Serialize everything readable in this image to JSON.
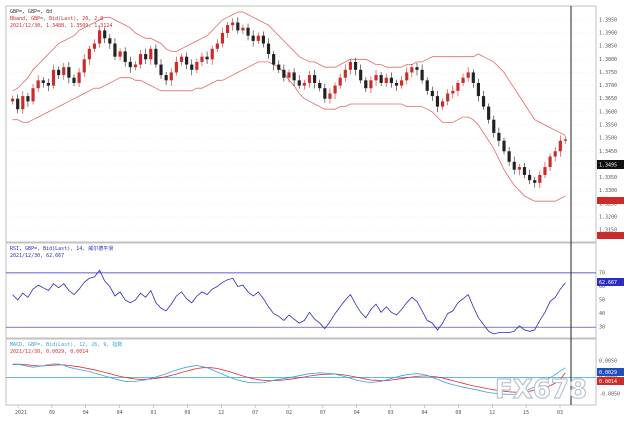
{
  "chart_data": [
    {
      "type": "candlestick",
      "panel": "price",
      "header": {
        "line1": "GBP=, GBP=, 8d",
        "line2": "Bband, GBP=, Bid(Last), 20, 2.0",
        "line3": "2021/12/30, 1.3488, 1.3509, 1.3124"
      },
      "last_price_label": "1.3495",
      "y_ticks": [
        "1.3950",
        "1.3900",
        "1.3850",
        "1.3800",
        "1.3750",
        "1.3700",
        "1.3650",
        "1.3600",
        "1.3550",
        "1.3500",
        "1.3450",
        "1.3400",
        "1.3350",
        "1.3300",
        "1.3250",
        "1.3200",
        "1.3150"
      ],
      "y_range": [
        1.312,
        1.398
      ],
      "candles_close": [
        1.365,
        1.361,
        1.366,
        1.364,
        1.369,
        1.372,
        1.371,
        1.37,
        1.376,
        1.374,
        1.377,
        1.373,
        1.371,
        1.375,
        1.38,
        1.384,
        1.386,
        1.391,
        1.388,
        1.386,
        1.381,
        1.383,
        1.379,
        1.377,
        1.378,
        1.382,
        1.38,
        1.384,
        1.378,
        1.374,
        1.372,
        1.375,
        1.379,
        1.381,
        1.378,
        1.376,
        1.379,
        1.381,
        1.38,
        1.384,
        1.386,
        1.39,
        1.393,
        1.394,
        1.391,
        1.392,
        1.389,
        1.387,
        1.389,
        1.386,
        1.382,
        1.378,
        1.376,
        1.373,
        1.375,
        1.372,
        1.37,
        1.371,
        1.374,
        1.371,
        1.369,
        1.365,
        1.367,
        1.37,
        1.373,
        1.376,
        1.379,
        1.376,
        1.372,
        1.369,
        1.372,
        1.374,
        1.371,
        1.373,
        1.371,
        1.37,
        1.372,
        1.375,
        1.377,
        1.376,
        1.372,
        1.368,
        1.366,
        1.362,
        1.364,
        1.367,
        1.368,
        1.371,
        1.373,
        1.375,
        1.371,
        1.366,
        1.362,
        1.357,
        1.352,
        1.349,
        1.345,
        1.341,
        1.338,
        1.339,
        1.336,
        1.334,
        1.333,
        1.336,
        1.339,
        1.343,
        1.345,
        1.349,
        1.3495
      ],
      "upper_band": [
        1.368,
        1.369,
        1.371,
        1.373,
        1.376,
        1.378,
        1.38,
        1.382,
        1.384,
        1.386,
        1.387,
        1.388,
        1.389,
        1.391,
        1.392,
        1.393,
        1.394,
        1.395,
        1.396,
        1.396,
        1.395,
        1.394,
        1.393,
        1.392,
        1.39,
        1.389,
        1.388,
        1.388,
        1.387,
        1.386,
        1.384,
        1.383,
        1.383,
        1.384,
        1.385,
        1.386,
        1.387,
        1.388,
        1.389,
        1.391,
        1.393,
        1.395,
        1.396,
        1.397,
        1.398,
        1.398,
        1.397,
        1.396,
        1.395,
        1.394,
        1.393,
        1.391,
        1.389,
        1.387,
        1.385,
        1.383,
        1.381,
        1.38,
        1.379,
        1.379,
        1.378,
        1.377,
        1.377,
        1.377,
        1.378,
        1.379,
        1.38,
        1.38,
        1.38,
        1.38,
        1.379,
        1.378,
        1.378,
        1.377,
        1.377,
        1.377,
        1.377,
        1.378,
        1.378,
        1.379,
        1.379,
        1.38,
        1.381,
        1.381,
        1.381,
        1.381,
        1.381,
        1.381,
        1.381,
        1.381,
        1.381,
        1.382,
        1.381,
        1.38,
        1.379,
        1.377,
        1.375,
        1.372,
        1.369,
        1.366,
        1.363,
        1.36,
        1.357,
        1.356,
        1.355,
        1.354,
        1.353,
        1.352,
        1.351
      ],
      "lower_band": [
        1.357,
        1.357,
        1.356,
        1.356,
        1.357,
        1.358,
        1.359,
        1.36,
        1.361,
        1.362,
        1.363,
        1.364,
        1.365,
        1.366,
        1.367,
        1.368,
        1.369,
        1.369,
        1.37,
        1.371,
        1.372,
        1.373,
        1.373,
        1.373,
        1.372,
        1.372,
        1.371,
        1.37,
        1.369,
        1.368,
        1.368,
        1.368,
        1.368,
        1.368,
        1.368,
        1.368,
        1.369,
        1.369,
        1.37,
        1.371,
        1.372,
        1.372,
        1.373,
        1.374,
        1.375,
        1.376,
        1.377,
        1.378,
        1.379,
        1.379,
        1.379,
        1.378,
        1.377,
        1.375,
        1.372,
        1.37,
        1.367,
        1.365,
        1.364,
        1.363,
        1.362,
        1.361,
        1.361,
        1.361,
        1.362,
        1.362,
        1.363,
        1.363,
        1.363,
        1.363,
        1.363,
        1.363,
        1.363,
        1.363,
        1.363,
        1.363,
        1.363,
        1.362,
        1.362,
        1.362,
        1.362,
        1.361,
        1.36,
        1.358,
        1.356,
        1.356,
        1.356,
        1.357,
        1.358,
        1.358,
        1.357,
        1.355,
        1.352,
        1.349,
        1.346,
        1.342,
        1.338,
        1.335,
        1.332,
        1.33,
        1.328,
        1.327,
        1.326,
        1.326,
        1.326,
        1.326,
        1.326,
        1.327,
        1.328
      ],
      "colors": {
        "up": "#cc2b2b",
        "down": "#222222",
        "band": "#e06a6a"
      }
    },
    {
      "type": "line",
      "panel": "rsi",
      "header": {
        "line1": "RSI, GBP=, Bid(Last), 14, 威尔德平滑",
        "line2": "2021/12/30, 62.667"
      },
      "value_label": "62.667",
      "y_ticks": [
        "70",
        "60",
        "50",
        "40",
        "30"
      ],
      "y_range": [
        25,
        78
      ],
      "levels": [
        70,
        30
      ],
      "values": [
        54,
        50,
        55,
        52,
        58,
        61,
        59,
        57,
        62,
        59,
        62,
        57,
        54,
        58,
        63,
        66,
        67,
        72,
        64,
        60,
        53,
        56,
        50,
        48,
        50,
        55,
        52,
        57,
        48,
        44,
        42,
        47,
        53,
        56,
        51,
        48,
        53,
        56,
        54,
        58,
        60,
        63,
        65,
        66,
        60,
        61,
        56,
        53,
        56,
        51,
        45,
        40,
        38,
        35,
        39,
        36,
        33,
        35,
        41,
        36,
        33,
        29,
        34,
        40,
        45,
        50,
        54,
        47,
        41,
        37,
        43,
        47,
        41,
        45,
        41,
        39,
        43,
        48,
        52,
        49,
        42,
        35,
        33,
        28,
        33,
        40,
        42,
        48,
        51,
        54,
        45,
        37,
        32,
        27,
        25,
        26,
        26,
        26,
        27,
        31,
        28,
        27,
        28,
        35,
        41,
        49,
        52,
        58,
        62.667
      ],
      "colors": {
        "line": "#2d2dbd",
        "levels": "#2d2dbd"
      }
    },
    {
      "type": "line",
      "panel": "macd",
      "header": {
        "line1": "MACD, GBP=, Bid(Last), 12, 26, 9, 指数",
        "line2": "2021/12/30, 0.0029, 0.0014"
      },
      "value_labels": [
        "0.0029",
        "0.0014"
      ],
      "y_ticks": [
        "0.0050",
        "0.0000",
        "-0.0050"
      ],
      "y_range": [
        -0.0075,
        0.0065
      ],
      "zero_line": 0,
      "macd": [
        0.0038,
        0.004,
        0.0037,
        0.0034,
        0.0031,
        0.0033,
        0.0035,
        0.0039,
        0.0041,
        0.004,
        0.0037,
        0.0031,
        0.0027,
        0.0024,
        0.0021,
        0.0018,
        0.0013,
        0.0009,
        0.0004,
        0.0,
        -0.0005,
        -0.0009,
        -0.0012,
        -0.0013,
        -0.0012,
        -0.001,
        -0.0007,
        -0.0003,
        0.0001,
        0.0006,
        0.0011,
        0.0017,
        0.0022,
        0.0027,
        0.0031,
        0.0034,
        0.0036,
        0.0033,
        0.0029,
        0.0023,
        0.0016,
        0.001,
        0.0003,
        -0.0003,
        -0.0008,
        -0.0012,
        -0.0015,
        -0.0016,
        -0.0017,
        -0.0016,
        -0.0013,
        -0.0009,
        -0.0006,
        -0.0004,
        -0.0001,
        0.0002,
        0.0005,
        0.0008,
        0.0011,
        0.0012,
        0.0014,
        0.0013,
        0.0012,
        0.001,
        0.0006,
        0.0002,
        -0.0003,
        -0.0008,
        -0.0011,
        -0.0014,
        -0.0015,
        -0.0014,
        -0.0012,
        -0.0008,
        -0.0003,
        0.0001,
        0.0005,
        0.0008,
        0.001,
        0.0011,
        0.001,
        0.0006,
        0.0,
        -0.0006,
        -0.0012,
        -0.0018,
        -0.0022,
        -0.0026,
        -0.003,
        -0.0033,
        -0.0036,
        -0.0039,
        -0.0043,
        -0.0046,
        -0.0048,
        -0.005,
        -0.0051,
        -0.0052,
        -0.0051,
        -0.0048,
        -0.0043,
        -0.0036,
        -0.0028,
        -0.0019,
        -0.001,
        -0.0001,
        0.0008,
        0.002,
        0.0029
      ],
      "signal": [
        0.004,
        0.004,
        0.0039,
        0.0038,
        0.0036,
        0.0035,
        0.0035,
        0.0036,
        0.0037,
        0.0038,
        0.0038,
        0.0036,
        0.0034,
        0.0032,
        0.0029,
        0.0026,
        0.0023,
        0.0019,
        0.0015,
        0.0011,
        0.0007,
        0.0003,
        0.0,
        -0.0003,
        -0.0005,
        -0.0006,
        -0.0006,
        -0.0005,
        -0.0003,
        -0.0001,
        0.0002,
        0.0006,
        0.001,
        0.0015,
        0.0019,
        0.0023,
        0.0027,
        0.0029,
        0.003,
        0.0029,
        0.0027,
        0.0023,
        0.0019,
        0.0014,
        0.0009,
        0.0004,
        0.0,
        -0.0004,
        -0.0007,
        -0.0009,
        -0.001,
        -0.001,
        -0.0009,
        -0.0008,
        -0.0006,
        -0.0004,
        -0.0001,
        0.0001,
        0.0004,
        0.0006,
        0.0008,
        0.0009,
        0.001,
        0.001,
        0.0009,
        0.0007,
        0.0004,
        0.0001,
        -0.0002,
        -0.0005,
        -0.0008,
        -0.0009,
        -0.001,
        -0.001,
        -0.0008,
        -0.0006,
        -0.0004,
        -0.0001,
        0.0001,
        0.0003,
        0.0004,
        0.0004,
        0.0003,
        0.0001,
        -0.0002,
        -0.0006,
        -0.001,
        -0.0014,
        -0.0018,
        -0.0022,
        -0.0026,
        -0.0029,
        -0.0032,
        -0.0035,
        -0.0038,
        -0.004,
        -0.0042,
        -0.0044,
        -0.0045,
        -0.0045,
        -0.0044,
        -0.0042,
        -0.0039,
        -0.0035,
        -0.003,
        -0.0025,
        -0.0018,
        -0.0006,
        0.0014
      ],
      "colors": {
        "macd": "#3aa0e0",
        "signal": "#e03030",
        "zero": "#3aa0e0"
      }
    }
  ],
  "x_axis": {
    "tick_labels": [
      "2021",
      "09",
      "04",
      "04",
      "01",
      "09",
      "12",
      "07",
      "02",
      "07",
      "04",
      "03",
      "04",
      "08",
      "12",
      "15",
      "03"
    ]
  },
  "watermark": "FX678"
}
